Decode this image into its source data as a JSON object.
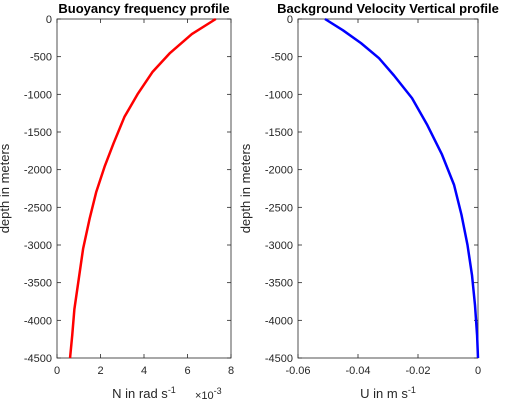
{
  "figure": {
    "background": "#ffffff",
    "axis_color": "#262626"
  },
  "chart_data": [
    {
      "type": "line",
      "title": "Buoyancy frequency profile",
      "xlabel": {
        "text": "N in rad s",
        "sup": "-1"
      },
      "xscale_note": {
        "base": "×10",
        "exp": "-3"
      },
      "ylabel": "depth in meters",
      "xlim": [
        0,
        8
      ],
      "ylim": [
        -4500,
        0
      ],
      "xticks": [
        0,
        2,
        4,
        6,
        8
      ],
      "xtick_labels": [
        "0",
        "2",
        "4",
        "6",
        "8"
      ],
      "yticks": [
        0,
        -500,
        -1000,
        -1500,
        -2000,
        -2500,
        -3000,
        -3500,
        -4000,
        -4500
      ],
      "ytick_labels": [
        "0",
        "-500",
        "-1000",
        "-1500",
        "-2000",
        "-2500",
        "-3000",
        "-3500",
        "-4000",
        "-4500"
      ],
      "series": [
        {
          "color": "#ff0000",
          "x": [
            7.3,
            6.2,
            5.2,
            4.4,
            3.7,
            3.1,
            2.6,
            2.2,
            1.8,
            1.5,
            1.2,
            1.0,
            0.8,
            0.7,
            0.6
          ],
          "y": [
            0,
            -200,
            -450,
            -700,
            -1000,
            -1300,
            -1650,
            -1950,
            -2300,
            -2650,
            -3050,
            -3450,
            -3850,
            -4200,
            -4500
          ]
        }
      ]
    },
    {
      "type": "line",
      "title": "Background Velocity Vertical profile",
      "xlabel": {
        "text": "U in m s",
        "sup": "-1"
      },
      "ylabel": "depth in meters",
      "xlim": [
        -0.06,
        0
      ],
      "ylim": [
        -4500,
        0
      ],
      "xticks": [
        -0.06,
        -0.04,
        -0.02,
        0
      ],
      "xtick_labels": [
        "-0.06",
        "-0.04",
        "-0.02",
        "0"
      ],
      "yticks": [
        0,
        -500,
        -1000,
        -1500,
        -2000,
        -2500,
        -3000,
        -3500,
        -4000,
        -4500
      ],
      "ytick_labels": [
        "0",
        "-500",
        "-1000",
        "-1500",
        "-2000",
        "-2500",
        "-3000",
        "-3500",
        "-4000",
        "-4500"
      ],
      "series": [
        {
          "color": "#0000ff",
          "x": [
            -0.051,
            -0.045,
            -0.039,
            -0.033,
            -0.028,
            -0.022,
            -0.017,
            -0.012,
            -0.008,
            -0.0055,
            -0.0035,
            -0.002,
            -0.001,
            -0.0003,
            0
          ],
          "y": [
            0,
            -150,
            -320,
            -520,
            -750,
            -1050,
            -1400,
            -1800,
            -2200,
            -2600,
            -3000,
            -3400,
            -3800,
            -4200,
            -4500
          ]
        }
      ]
    }
  ]
}
